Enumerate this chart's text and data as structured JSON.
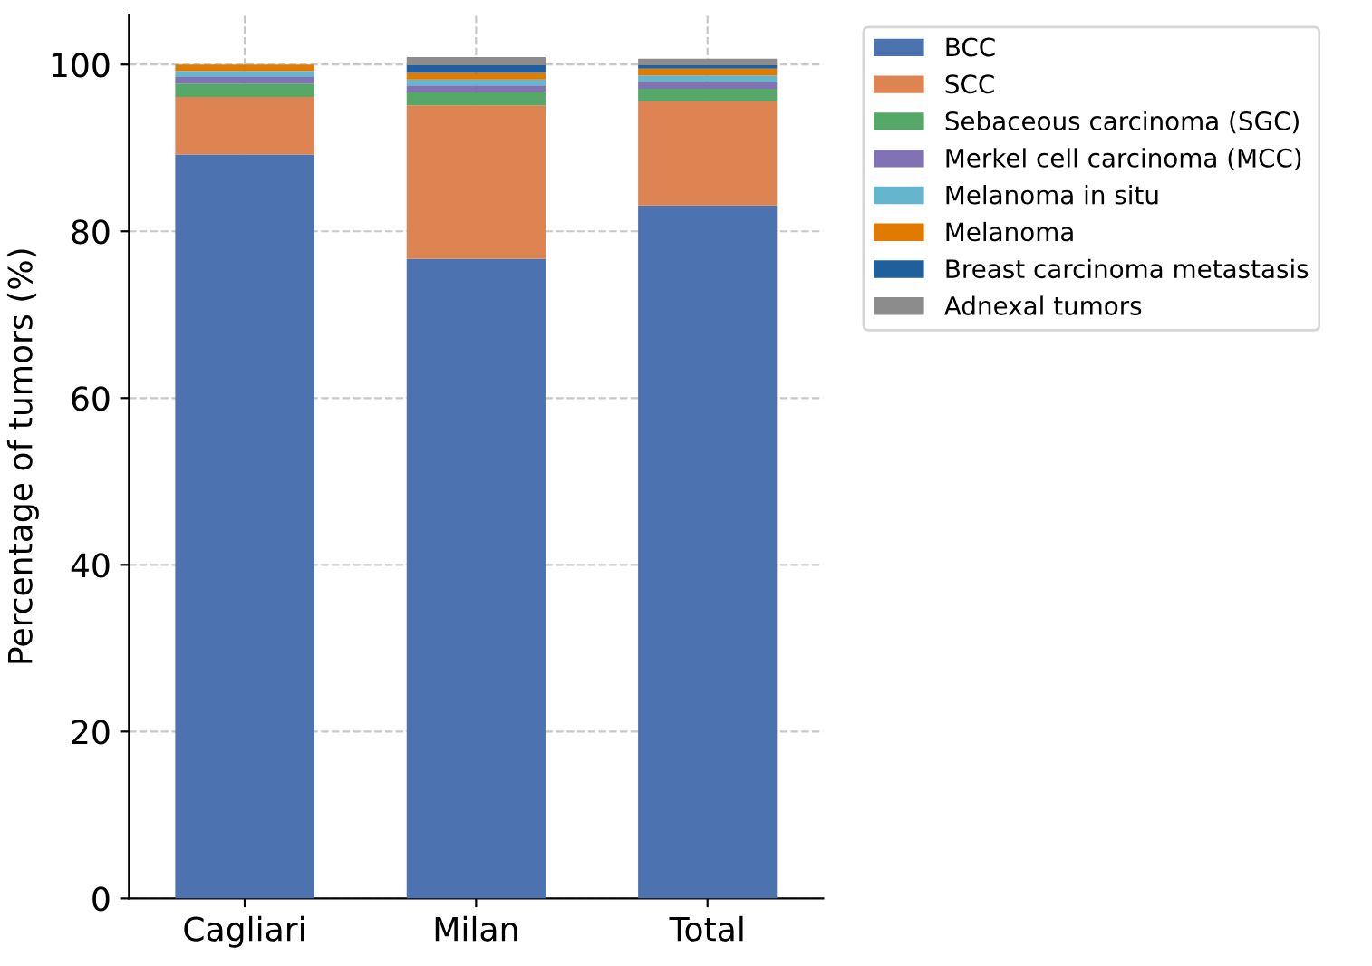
{
  "chart_data": {
    "type": "bar",
    "stacked": true,
    "ylabel": "Percentage of tumors (%)",
    "categories": [
      "Cagliari",
      "Milan",
      "Total"
    ],
    "series": [
      {
        "name": "BCC",
        "color": "#4c72b0",
        "values": [
          89.2,
          76.7,
          83.1
        ]
      },
      {
        "name": "SCC",
        "color": "#dd8452",
        "values": [
          6.9,
          18.4,
          12.5
        ]
      },
      {
        "name": "Sebaceous carcinoma (SGC)",
        "color": "#55a868",
        "values": [
          1.6,
          1.6,
          1.5
        ]
      },
      {
        "name": "Merkel cell carcinoma (MCC)",
        "color": "#8172b3",
        "values": [
          0.8,
          0.8,
          0.8
        ]
      },
      {
        "name": "Melanoma in situ",
        "color": "#64b5cd",
        "values": [
          0.7,
          0.7,
          0.8
        ]
      },
      {
        "name": "Melanoma",
        "color": "#e07b00",
        "values": [
          0.8,
          0.8,
          0.8
        ]
      },
      {
        "name": "Breast carcinoma metastasis",
        "color": "#1f5f9e",
        "values": [
          0,
          0.9,
          0.4
        ]
      },
      {
        "name": "Adnexal tumors",
        "color": "#8c8c8c",
        "values": [
          0,
          1.0,
          0.8
        ]
      }
    ],
    "ylim": [
      0,
      106
    ],
    "yticks": [
      0,
      20,
      40,
      60,
      80,
      100
    ],
    "grid": true,
    "legend": "top right"
  }
}
